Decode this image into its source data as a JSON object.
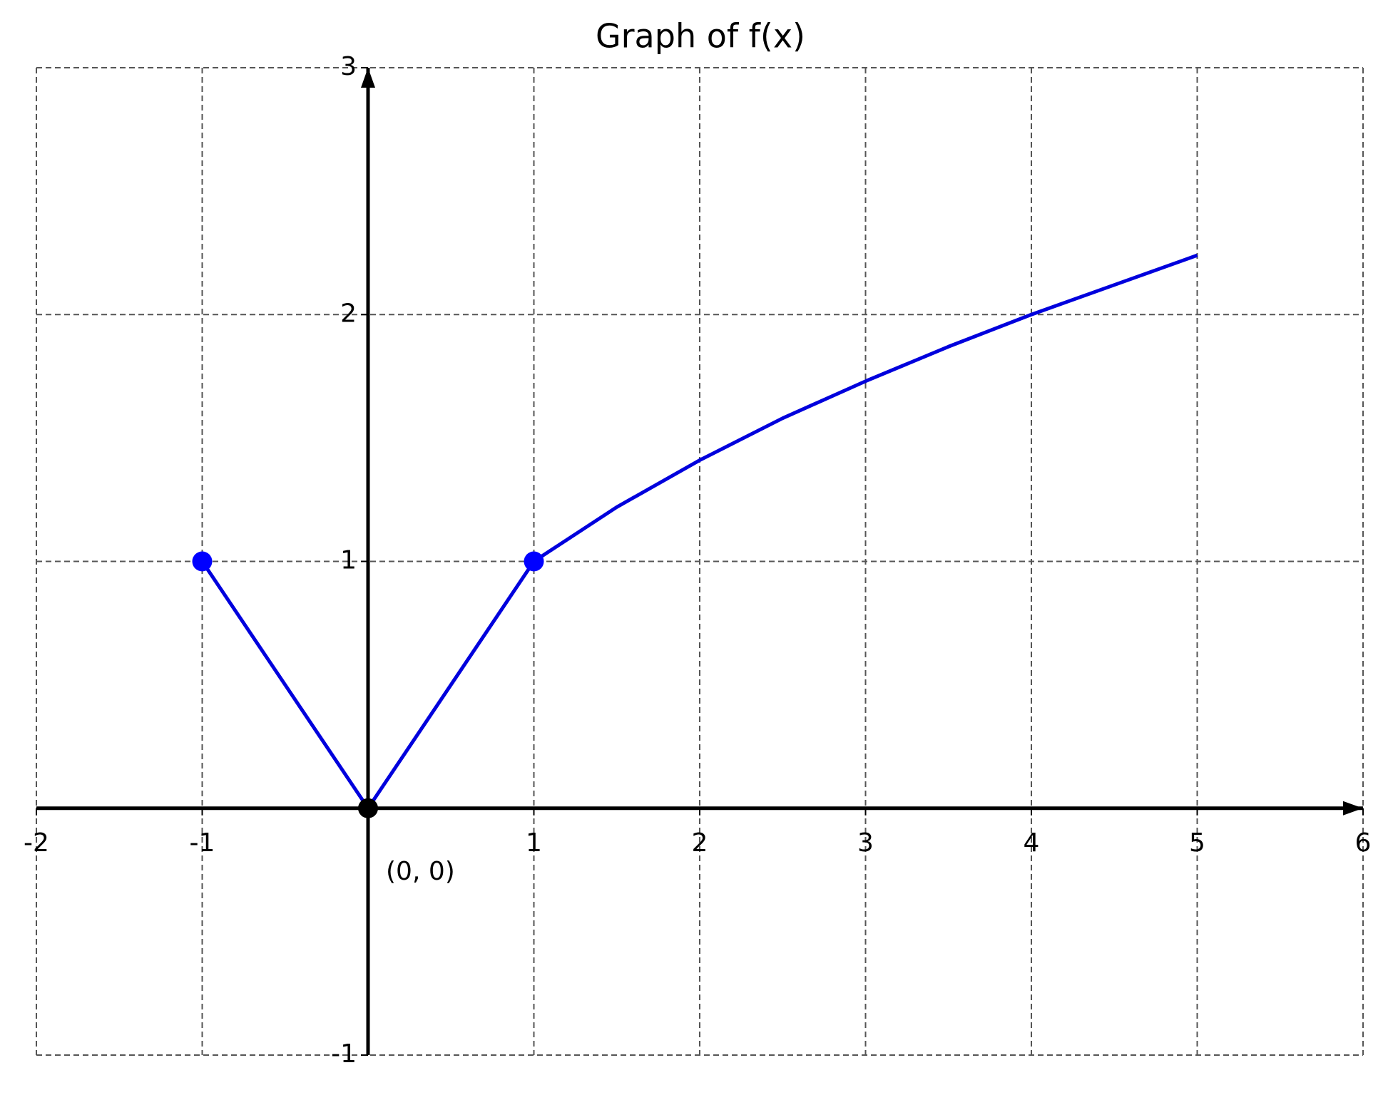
{
  "chart_data": {
    "type": "line",
    "title": "Graph of f(x)",
    "series": [
      {
        "color": "#0000dd",
        "x": [
          -1,
          0,
          1,
          1.5,
          2,
          2.5,
          3,
          3.5,
          4,
          4.5,
          5
        ],
        "values": [
          1,
          0,
          1,
          1.22,
          1.41,
          1.58,
          1.73,
          1.87,
          2,
          2.12,
          2.24
        ]
      }
    ],
    "points": [
      {
        "color": "#0000ff",
        "x": [
          -1,
          1
        ],
        "values": [
          1,
          1
        ]
      },
      {
        "color": "#000000",
        "x": [
          0
        ],
        "values": [
          0
        ]
      }
    ],
    "annotation": "(0, 0)",
    "xlim": [
      -2,
      6
    ],
    "xticks": [
      -2,
      -1,
      1,
      2,
      3,
      4,
      5,
      6
    ],
    "ylim": [
      -1,
      3
    ],
    "yticks": [
      -1,
      1,
      2,
      3
    ],
    "grid": true
  }
}
